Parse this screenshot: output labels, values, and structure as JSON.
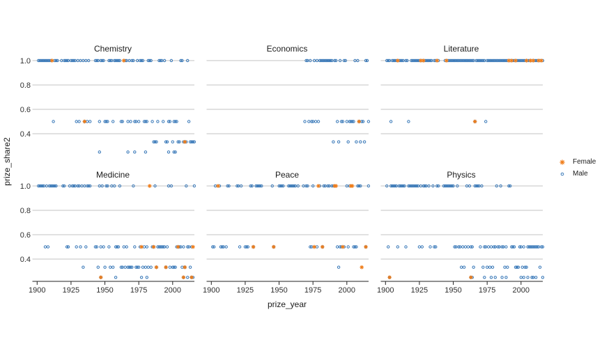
{
  "colors": {
    "female": "#ef7d1a",
    "male": "#3878b8",
    "grid": "#c3c3c3",
    "axis": "#222222",
    "tick_text": "#2e2e2e",
    "title_text": "#1a1a1a"
  },
  "chart_data": {
    "type": "scatter",
    "title": "",
    "xlabel": "prize_year",
    "ylabel": "prize_share2",
    "x_ticks": [
      "1900",
      "1925",
      "1950",
      "1975",
      "2000"
    ],
    "y_ticks": [
      "1.0",
      "0.8",
      "0.6",
      "0.4"
    ],
    "y_gridline_values": [
      1.0,
      0.8,
      0.6,
      0.4
    ],
    "x_range": [
      1896,
      2017
    ],
    "y_range": [
      0.22,
      1.04
    ],
    "grid": "horizontal-only",
    "legend_position": "right",
    "legend": {
      "items": [
        {
          "label": "Female",
          "shape": "asterisk",
          "color": "#ef7d1a"
        },
        {
          "label": "Male",
          "shape": "open-circle",
          "color": "#3878b8"
        }
      ]
    },
    "facets": [
      {
        "label": "Chemistry",
        "male": {
          "1": [
            1901,
            1902,
            1903,
            1904,
            1905,
            1906,
            1907,
            1908,
            1909,
            1910,
            1913,
            1914,
            1915,
            1918,
            1920,
            1921,
            1922,
            1923,
            1925,
            1926,
            1927,
            1928,
            1930,
            1932,
            1934,
            1936,
            1938,
            1943,
            1944,
            1945,
            1947,
            1948,
            1949,
            1953,
            1954,
            1955,
            1957,
            1958,
            1959,
            1960,
            1961,
            1965,
            1966,
            1968,
            1970,
            1971,
            1974,
            1976,
            1977,
            1978,
            1982,
            1983,
            1984,
            1990,
            1991,
            1992,
            1994,
            1999,
            2006,
            2007,
            2011
          ],
          "0.5": [
            1912,
            1929,
            1931,
            1935,
            1937,
            1939,
            1946,
            1950,
            1951,
            1952,
            1956,
            1962,
            1963,
            1967,
            1969,
            1972,
            1973,
            1975,
            1979,
            1980,
            1981,
            1985,
            1989,
            1993,
            1997,
            1998,
            2001,
            2002,
            2003,
            2012
          ],
          "0.333": [
            1986,
            1987,
            1988,
            1995,
            1996,
            2000,
            2004,
            2005,
            2008,
            2009,
            2010,
            2013,
            2014,
            2015,
            2016
          ],
          "0.25": [
            1946,
            1967,
            1972,
            1980,
            1997,
            2001,
            2002
          ]
        },
        "female": {
          "1": [
            1911,
            1964
          ],
          "0.5": [
            1935
          ],
          "0.333": [
            2009
          ]
        }
      },
      {
        "label": "Economics",
        "male": {
          "1": [
            1970,
            1971,
            1973,
            1976,
            1978,
            1980,
            1981,
            1982,
            1983,
            1984,
            1985,
            1986,
            1987,
            1988,
            1989,
            1991,
            1992,
            1995,
            1998,
            1999,
            2006,
            2008,
            2014,
            2015
          ],
          "0.5": [
            1969,
            1972,
            1974,
            1975,
            1977,
            1979,
            1993,
            1996,
            1997,
            2000,
            2002,
            2003,
            2004,
            2005,
            2009,
            2011,
            2012,
            2016
          ],
          "0.333": [
            1990,
            1994,
            2001,
            2007,
            2010,
            2013
          ]
        },
        "female": {
          "0.5": [
            2009
          ]
        }
      },
      {
        "label": "Literature",
        "male": {
          "1": [
            1901,
            1902,
            1903,
            1905,
            1906,
            1907,
            1908,
            1910,
            1911,
            1912,
            1913,
            1915,
            1916,
            1919,
            1920,
            1921,
            1922,
            1923,
            1924,
            1925,
            1927,
            1929,
            1930,
            1931,
            1932,
            1933,
            1934,
            1936,
            1937,
            1939,
            1944,
            1946,
            1947,
            1948,
            1949,
            1950,
            1951,
            1952,
            1953,
            1954,
            1955,
            1956,
            1957,
            1958,
            1959,
            1960,
            1961,
            1962,
            1963,
            1964,
            1965,
            1967,
            1968,
            1969,
            1970,
            1971,
            1972,
            1973,
            1975,
            1976,
            1977,
            1978,
            1979,
            1980,
            1981,
            1982,
            1983,
            1984,
            1985,
            1986,
            1987,
            1988,
            1989,
            1990,
            1992,
            1994,
            1995,
            1997,
            1998,
            1999,
            2000,
            2001,
            2002,
            2003,
            2005,
            2006,
            2008,
            2010,
            2011,
            2012,
            2014,
            2016
          ],
          "0.5": [
            1904,
            1917,
            1966,
            1974
          ]
        },
        "female": {
          "1": [
            1909,
            1926,
            1928,
            1938,
            1945,
            1991,
            1993,
            1996,
            2004,
            2007,
            2009,
            2013,
            2015
          ],
          "0.5": [
            1966
          ]
        }
      },
      {
        "label": "Medicine",
        "male": {
          "1": [
            1901,
            1902,
            1903,
            1904,
            1905,
            1907,
            1909,
            1910,
            1911,
            1912,
            1913,
            1914,
            1919,
            1920,
            1924,
            1926,
            1927,
            1928,
            1930,
            1931,
            1933,
            1935,
            1937,
            1938,
            1939,
            1946,
            1948,
            1951,
            1952,
            1955,
            1957,
            1961,
            1971,
            1987,
            1997,
            1999,
            2010,
            2016
          ],
          "0.5": [
            1906,
            1908,
            1922,
            1923,
            1929,
            1932,
            1936,
            1943,
            1944,
            1947,
            1949,
            1953,
            1958,
            1959,
            1960,
            1964,
            1966,
            1972,
            1976,
            1979,
            1981,
            1985,
            1986,
            1989,
            1990,
            1991,
            1992,
            1993,
            1994,
            1996,
            2003,
            2004,
            2005,
            2006,
            2008,
            2011,
            2012,
            2014
          ],
          "0.333": [
            1934,
            1945,
            1950,
            1954,
            1956,
            1962,
            1963,
            1965,
            1967,
            1968,
            1969,
            1970,
            1973,
            1974,
            1975,
            1978,
            1980,
            1982,
            1984,
            1988,
            1995,
            1998,
            2000,
            2001,
            2002,
            2007,
            2009,
            2013
          ],
          "0.25": [
            1947,
            1958,
            1977,
            1981,
            2008,
            2011,
            2014,
            2015
          ]
        },
        "female": {
          "1": [
            1983
          ],
          "0.5": [
            1977,
            1986,
            2004,
            2015
          ],
          "0.333": [
            1988,
            1995,
            2009
          ],
          "0.25": [
            1947,
            2008,
            2014
          ]
        }
      },
      {
        "label": "Peace",
        "male": {
          "1": [
            1903,
            1906,
            1912,
            1913,
            1919,
            1920,
            1922,
            1929,
            1930,
            1933,
            1934,
            1935,
            1936,
            1937,
            1945,
            1950,
            1951,
            1952,
            1953,
            1957,
            1958,
            1959,
            1960,
            1961,
            1962,
            1964,
            1968,
            1970,
            1971,
            1975,
            1980,
            1983,
            1984,
            1986,
            1987,
            1989,
            1990,
            2000,
            2002,
            2008,
            2009,
            2010,
            2016
          ],
          "0.5": [
            1901,
            1902,
            1907,
            1908,
            1909,
            1911,
            1921,
            1925,
            1926,
            1927,
            1931,
            1946,
            1973,
            1974,
            1978,
            1982,
            1993,
            1995,
            1996,
            1998,
            2001,
            2005,
            2006,
            2007,
            2014
          ],
          "0.333": [
            1994
          ]
        },
        "female": {
          "1": [
            1905,
            1979,
            1991,
            1992,
            2003,
            2004
          ],
          "0.5": [
            1931,
            1946,
            1976,
            1982,
            1997,
            2014
          ],
          "0.333": [
            2011
          ]
        }
      },
      {
        "label": "Physics",
        "male": {
          "1": [
            1901,
            1904,
            1905,
            1906,
            1907,
            1908,
            1910,
            1911,
            1912,
            1913,
            1914,
            1917,
            1918,
            1919,
            1920,
            1921,
            1922,
            1923,
            1924,
            1926,
            1928,
            1929,
            1930,
            1932,
            1935,
            1938,
            1939,
            1943,
            1944,
            1945,
            1946,
            1947,
            1948,
            1949,
            1950,
            1953,
            1960,
            1962,
            1966,
            1967,
            1968,
            1969,
            1971,
            1982,
            1985,
            1991,
            1992
          ],
          "0.5": [
            1902,
            1909,
            1915,
            1925,
            1927,
            1933,
            1936,
            1937,
            1951,
            1952,
            1954,
            1955,
            1957,
            1959,
            1961,
            1963,
            1964,
            1970,
            1973,
            1974,
            1976,
            1978,
            1980,
            1981,
            1983,
            1984,
            1986,
            1987,
            1989,
            1993,
            1994,
            1995,
            1999,
            2000,
            2002,
            2005,
            2006,
            2007,
            2008,
            2009,
            2010,
            2011,
            2012,
            2013,
            2015,
            2016
          ],
          "0.333": [
            1956,
            1958,
            1965,
            1972,
            1975,
            1977,
            1979,
            1988,
            1990,
            1996,
            1997,
            1998,
            2001,
            2003,
            2004,
            2014
          ],
          "0.25": [
            1903,
            1963,
            1964,
            1973,
            1978,
            1981,
            1986,
            1989,
            2000,
            2002,
            2005,
            2008,
            2009,
            2011,
            2016
          ]
        },
        "female": {
          "0.25": [
            1903,
            1963
          ]
        }
      }
    ]
  }
}
